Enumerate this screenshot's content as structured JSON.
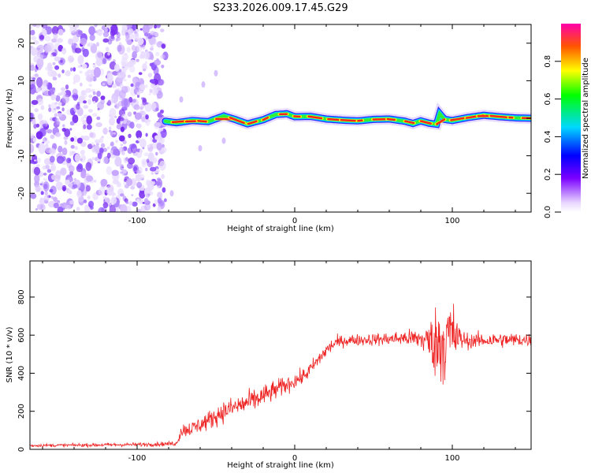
{
  "chart_data": [
    {
      "type": "heatmap",
      "title": "S233.2026.009.17.45.G29",
      "xlabel": "Height of straight line (km)",
      "ylabel": "Frequency (Hz)",
      "xlim": [
        -168,
        150
      ],
      "ylim": [
        -25,
        25
      ],
      "xticks": [
        -100,
        0,
        100
      ],
      "xtick_labels": [
        "-100",
        "0",
        "100"
      ],
      "yticks": [
        -20,
        -10,
        0,
        10,
        20
      ],
      "ytick_labels": [
        "-20",
        "-10",
        "0",
        "10",
        "20"
      ],
      "noise_region_x": [
        -168,
        -82
      ],
      "ridge": {
        "x": [
          -82,
          -75,
          -65,
          -55,
          -45,
          -38,
          -30,
          -20,
          -12,
          -5,
          0,
          10,
          20,
          30,
          40,
          50,
          60,
          70,
          75,
          80,
          85,
          90,
          92,
          95,
          100,
          110,
          120,
          130,
          140,
          150
        ],
        "freq": [
          -0.8,
          -1.2,
          -0.6,
          -0.9,
          0.6,
          -0.3,
          -1.5,
          -0.4,
          1.0,
          1.2,
          0.4,
          0.5,
          -0.2,
          -0.5,
          -0.7,
          -0.3,
          -0.2,
          -0.8,
          -1.4,
          -0.7,
          -1.3,
          -1.6,
          1.2,
          -0.3,
          -0.6,
          0.2,
          0.8,
          0.4,
          0.1,
          0.0
        ]
      },
      "colorbar": {
        "label": "Normalized spectral amplitude",
        "ticks": [
          "0.0",
          "0.2",
          "0.4",
          "0.6",
          "0.8"
        ],
        "tick_values": [
          0.0,
          0.2,
          0.4,
          0.6,
          0.8
        ],
        "range": [
          0,
          1
        ]
      }
    },
    {
      "type": "line",
      "xlabel": "Height of straight line (km)",
      "ylabel": "SNR (10 * v/v)",
      "xlim": [
        -168,
        150
      ],
      "ylim": [
        0,
        990
      ],
      "xticks": [
        -100,
        0,
        100
      ],
      "xtick_labels": [
        "-100",
        "0",
        "100"
      ],
      "yticks": [
        0,
        200,
        400,
        600,
        800
      ],
      "ytick_labels": [
        "0",
        "200",
        "400",
        "600",
        "800"
      ],
      "series": [
        {
          "name": "SNR",
          "color": "#ee2222",
          "envelope": {
            "x": [
              -168,
              -100,
              -75,
              -72,
              -65,
              -55,
              -45,
              -35,
              -25,
              -15,
              -5,
              0,
              5,
              10,
              15,
              20,
              25,
              30,
              40,
              60,
              70,
              80,
              85,
              90,
              95,
              100,
              105,
              110,
              130,
              150
            ],
            "mean": [
              20,
              25,
              30,
              100,
              110,
              150,
              200,
              230,
              260,
              300,
              340,
              360,
              380,
              420,
              470,
              520,
              555,
              570,
              575,
              580,
              585,
              580,
              570,
              560,
              580,
              600,
              580,
              570,
              575,
              575
            ],
            "spread": [
              8,
              10,
              12,
              40,
              40,
              50,
              55,
              60,
              60,
              55,
              45,
              40,
              40,
              40,
              40,
              40,
              35,
              30,
              30,
              35,
              40,
              60,
              100,
              200,
              250,
              200,
              60,
              40,
              40,
              35
            ]
          }
        }
      ]
    }
  ]
}
